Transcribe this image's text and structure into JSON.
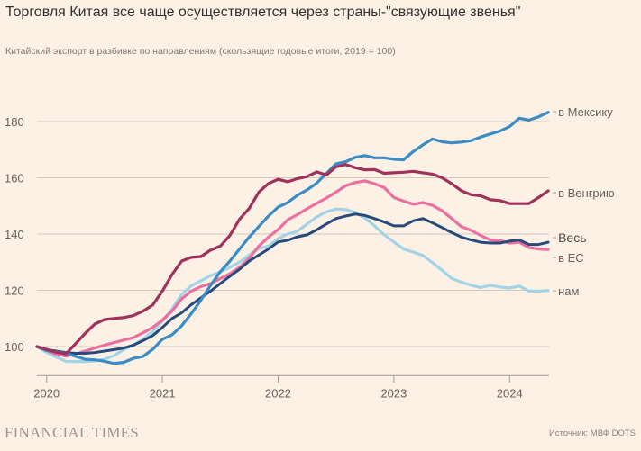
{
  "title": "Торговля Китая все чаще осуществляется через страны-\"связующие звенья\"",
  "subtitle": "Китайский экспорт в разбивке по направлениям (скользящие годовые итоги, 2019 = 100)",
  "footer": {
    "logo": "FINANCIAL TIMES",
    "source": "Источник: МВФ DOTS"
  },
  "chart_data": {
    "type": "line",
    "title": "Торговля Китая все чаще осуществляется через страны-\"связующие звенья\"",
    "subtitle": "Китайский экспорт в разбивке по направлениям (скользящие годовые итоги, 2019 = 100)",
    "xlabel": "",
    "ylabel": "",
    "x_start": "2019-12",
    "x_frequency": "monthly",
    "x_ticks": [
      "2020",
      "2021",
      "2022",
      "2023",
      "2024"
    ],
    "x_tick_index": [
      1,
      13,
      25,
      37,
      49
    ],
    "y_ticks": [
      100,
      120,
      140,
      160,
      180
    ],
    "ylim": [
      90,
      190
    ],
    "grid": true,
    "legend": "direct labels at line ends (right)",
    "series": [
      {
        "name": "в Мексику",
        "color": "#3a8cc4",
        "values": [
          100,
          98.6,
          98.1,
          97.6,
          96.5,
          95.5,
          95.3,
          94.8,
          94.0,
          94.4,
          95.8,
          96.5,
          99.0,
          102.6,
          104.2,
          107.4,
          111.7,
          116.5,
          121.8,
          126.6,
          130.4,
          134.7,
          138.9,
          142.7,
          146.4,
          149.6,
          151.2,
          153.8,
          155.7,
          158.1,
          161.5,
          165.0,
          165.7,
          167.3,
          167.9,
          167.1,
          167.1,
          166.6,
          166.4,
          169.3,
          171.7,
          173.8,
          172.8,
          172.4,
          172.7,
          173.2,
          174.5,
          175.6,
          176.6,
          178.2,
          181.2,
          180.5,
          181.7,
          183.3
        ]
      },
      {
        "name": "в Венгрию",
        "color": "#a0315b",
        "values": [
          100,
          99.0,
          98.0,
          97.4,
          101.0,
          104.7,
          108.0,
          109.6,
          110.0,
          110.3,
          111.0,
          112.6,
          114.8,
          119.7,
          125.6,
          130.4,
          131.7,
          132.0,
          134.3,
          135.7,
          139.5,
          145.3,
          149.1,
          154.9,
          158.0,
          159.5,
          158.6,
          159.7,
          160.4,
          162.1,
          161.0,
          163.9,
          164.7,
          163.6,
          162.8,
          162.9,
          161.6,
          161.8,
          162.0,
          162.3,
          161.8,
          161.3,
          160.0,
          157.9,
          155.4,
          154.0,
          153.6,
          152.2,
          151.9,
          150.8,
          150.8,
          150.8,
          153.0,
          155.4
        ]
      },
      {
        "name": "Весь",
        "color": "#264a7c",
        "values": [
          100,
          98.9,
          98.4,
          97.9,
          97.6,
          97.6,
          97.9,
          98.4,
          98.9,
          99.5,
          100.5,
          102.1,
          103.9,
          106.8,
          110.0,
          112.0,
          114.9,
          117.3,
          119.7,
          122.4,
          125.0,
          127.5,
          130.4,
          132.5,
          134.7,
          137.2,
          137.8,
          139.0,
          139.7,
          141.5,
          143.6,
          145.5,
          146.4,
          147.1,
          146.6,
          145.5,
          144.3,
          142.9,
          142.9,
          144.7,
          145.5,
          144.0,
          142.3,
          140.5,
          138.9,
          137.9,
          137.1,
          136.8,
          136.8,
          137.5,
          137.9,
          136.3,
          136.3,
          137.1
        ]
      },
      {
        "name": "в ЕС",
        "color": "#eb6f9f",
        "values": [
          100,
          98.6,
          97.3,
          96.6,
          97.3,
          98.4,
          99.5,
          100.5,
          101.4,
          102.3,
          103.2,
          104.9,
          106.8,
          109.4,
          112.6,
          117.0,
          119.7,
          121.3,
          122.4,
          124.2,
          125.9,
          128.2,
          131.4,
          135.7,
          138.9,
          141.6,
          145.1,
          146.9,
          149.0,
          150.9,
          152.8,
          154.9,
          157.2,
          158.3,
          158.9,
          157.9,
          156.5,
          153.0,
          151.7,
          150.6,
          151.2,
          150.2,
          148.3,
          145.5,
          142.6,
          141.3,
          139.5,
          137.9,
          137.7,
          136.8,
          137.1,
          135.2,
          134.7,
          134.5
        ]
      },
      {
        "name": "нам",
        "color": "#a2d4e6",
        "values": [
          100,
          97.9,
          96.3,
          94.7,
          94.7,
          94.7,
          94.9,
          95.5,
          96.8,
          98.9,
          100.5,
          102.6,
          105.3,
          109.0,
          113.3,
          118.6,
          121.6,
          123.4,
          125.2,
          126.6,
          128.2,
          130.0,
          132.5,
          134.9,
          135.7,
          138.4,
          140.0,
          141.0,
          143.6,
          146.1,
          147.9,
          148.9,
          148.7,
          147.7,
          145.7,
          142.9,
          139.7,
          137.2,
          134.7,
          133.6,
          132.4,
          129.8,
          127.1,
          124.2,
          122.9,
          121.8,
          121.0,
          121.8,
          121.2,
          120.8,
          121.5,
          119.7,
          119.7,
          119.9
        ]
      }
    ]
  }
}
